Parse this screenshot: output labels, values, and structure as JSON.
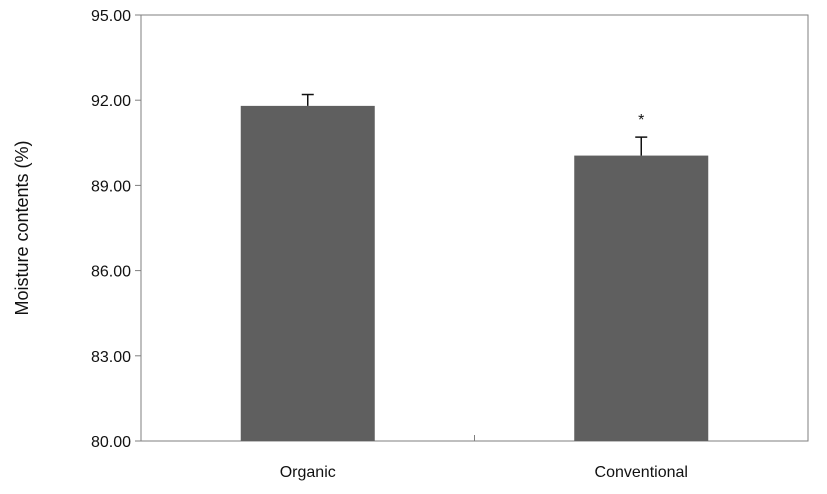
{
  "chart_data": {
    "type": "bar",
    "categories": [
      "Organic",
      "Conventional"
    ],
    "values": [
      91.8,
      90.05
    ],
    "error": [
      0.4,
      0.65
    ],
    "annotations": [
      "",
      "*"
    ],
    "ylabel": "Moisture contents  (%)",
    "xlabel": "",
    "ylim": [
      80,
      95
    ],
    "yticks": [
      "80.00",
      "83.00",
      "86.00",
      "89.00",
      "92.00",
      "95.00"
    ],
    "grid": false,
    "legend": "none",
    "colors": {
      "bar": "#5f5f5f",
      "axis": "#7f7f7f",
      "error_bar": "#111111"
    }
  }
}
